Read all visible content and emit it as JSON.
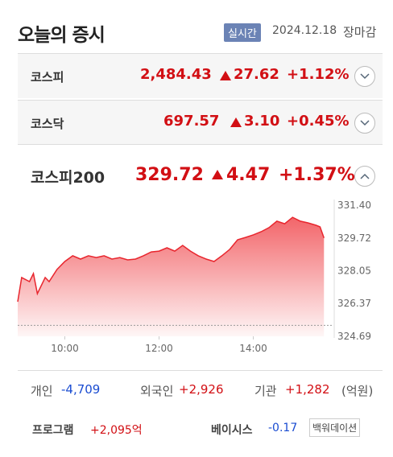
{
  "header": {
    "title": "오늘의 증시",
    "badge": "실시간",
    "date": "2024.12.18",
    "status": "장마감"
  },
  "indices": [
    {
      "name": "코스피",
      "value": "2,484.43",
      "change": "27.62",
      "percent": "+1.12%"
    },
    {
      "name": "코스닥",
      "value": "697.57",
      "change": "3.10",
      "percent": "+0.45%"
    },
    {
      "name": "코스피200",
      "value": "329.72",
      "change": "4.47",
      "percent": "+1.37%"
    }
  ],
  "chart_data": {
    "type": "area",
    "color": "#e8262e",
    "baseline": 325.25,
    "x": [
      540,
      545,
      555,
      560,
      565,
      575,
      580,
      590,
      600,
      610,
      620,
      630,
      640,
      650,
      660,
      670,
      680,
      690,
      700,
      710,
      720,
      730,
      740,
      750,
      760,
      770,
      780,
      790,
      800,
      810,
      820,
      830,
      840,
      850,
      860,
      870,
      880,
      890,
      900,
      910,
      920,
      925,
      930
    ],
    "values": [
      326.46,
      327.7,
      327.49,
      327.9,
      326.87,
      327.7,
      327.49,
      328.11,
      328.52,
      328.81,
      328.64,
      328.81,
      328.72,
      328.81,
      328.64,
      328.72,
      328.6,
      328.64,
      328.81,
      329.01,
      329.05,
      329.22,
      329.05,
      329.34,
      329.05,
      328.81,
      328.64,
      328.52,
      328.81,
      329.14,
      329.63,
      329.75,
      329.88,
      330.04,
      330.25,
      330.58,
      330.45,
      330.78,
      330.58,
      330.49,
      330.37,
      330.29,
      329.72
    ],
    "xlim": [
      540,
      940
    ],
    "xticks": [
      {
        "value": 600,
        "label": "10:00"
      },
      {
        "value": 720,
        "label": "12:00"
      },
      {
        "value": 840,
        "label": "14:00"
      }
    ],
    "ylim": [
      324.69,
      331.4
    ],
    "yticks": [
      {
        "value": 331.4,
        "label": "331.40"
      },
      329.72,
      328.05,
      326.37,
      324.69
    ],
    "grid": false
  },
  "investors": {
    "items": [
      {
        "name": "개인",
        "value": "-4,709"
      },
      {
        "name": "외국인",
        "value": "+2,926"
      },
      {
        "name": "기관",
        "value": "+1,282"
      }
    ],
    "unit": "(억원)"
  },
  "footer": {
    "program_label": "프로그램",
    "program_value": "+2,095억",
    "basis_label": "베이시스",
    "basis_value": "-0.17",
    "basis_state": "백워데이션"
  }
}
